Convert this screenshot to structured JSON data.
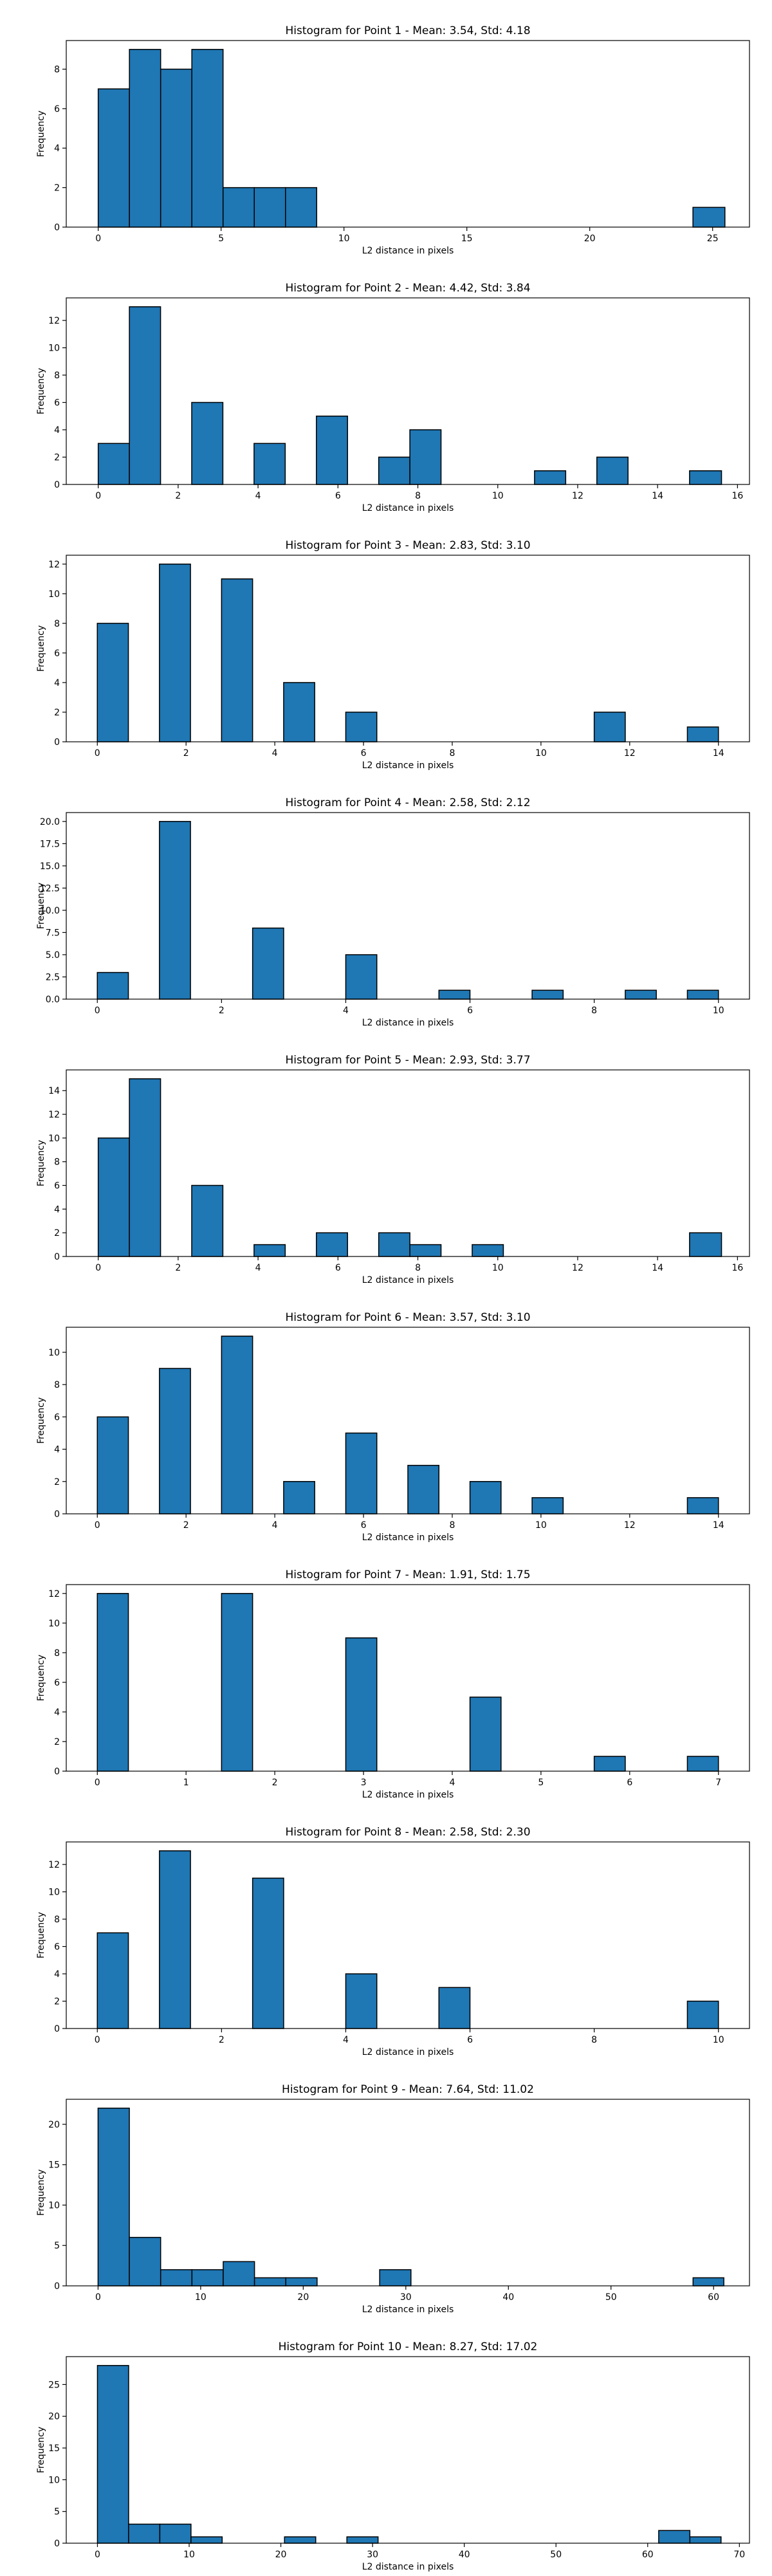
{
  "style": {
    "bar_color": "#1f77b4",
    "edge_color": "#000000"
  },
  "chart_data": [
    {
      "type": "bar",
      "title": "Histogram for Point 1 - Mean: 3.54, Std: 4.18",
      "xlabel": "L2 distance in pixels",
      "ylabel": "Frequency",
      "xlim": [
        -1.3,
        26.5
      ],
      "ylim": [
        0,
        9.45
      ],
      "xticks": [
        "0",
        "5",
        "10",
        "15",
        "20",
        "25"
      ],
      "yticks": [
        "0",
        "2",
        "4",
        "6",
        "8"
      ],
      "bars": [
        {
          "x0": 0,
          "x1": 1.27,
          "count": 7
        },
        {
          "x0": 1.27,
          "x1": 2.54,
          "count": 9
        },
        {
          "x0": 2.54,
          "x1": 3.81,
          "count": 8
        },
        {
          "x0": 3.81,
          "x1": 5.08,
          "count": 9
        },
        {
          "x0": 5.08,
          "x1": 6.35,
          "count": 2
        },
        {
          "x0": 6.35,
          "x1": 7.62,
          "count": 2
        },
        {
          "x0": 7.62,
          "x1": 8.89,
          "count": 2
        },
        {
          "x0": 24.2,
          "x1": 25.5,
          "count": 1
        }
      ]
    },
    {
      "type": "bar",
      "title": "Histogram for Point 2 - Mean: 4.42, Std: 3.84",
      "xlabel": "L2 distance in pixels",
      "ylabel": "Frequency",
      "xlim": [
        -0.8,
        16.3
      ],
      "ylim": [
        0,
        13.65
      ],
      "xticks": [
        "0",
        "2",
        "4",
        "6",
        "8",
        "10",
        "12",
        "14",
        "16"
      ],
      "yticks": [
        "0",
        "2",
        "4",
        "6",
        "8",
        "10",
        "12"
      ],
      "bars": [
        {
          "x0": 0,
          "x1": 0.78,
          "count": 3
        },
        {
          "x0": 0.78,
          "x1": 1.56,
          "count": 13
        },
        {
          "x0": 2.34,
          "x1": 3.12,
          "count": 6
        },
        {
          "x0": 3.9,
          "x1": 4.68,
          "count": 3
        },
        {
          "x0": 5.46,
          "x1": 6.24,
          "count": 5
        },
        {
          "x0": 7.02,
          "x1": 7.8,
          "count": 2
        },
        {
          "x0": 7.8,
          "x1": 8.58,
          "count": 4
        },
        {
          "x0": 10.92,
          "x1": 11.7,
          "count": 1
        },
        {
          "x0": 12.48,
          "x1": 13.26,
          "count": 2
        },
        {
          "x0": 14.8,
          "x1": 15.6,
          "count": 1
        }
      ]
    },
    {
      "type": "bar",
      "title": "Histogram for Point 3 - Mean: 2.83, Std: 3.10",
      "xlabel": "L2 distance in pixels",
      "ylabel": "Frequency",
      "xlim": [
        -0.7,
        14.7
      ],
      "ylim": [
        0,
        12.6
      ],
      "xticks": [
        "0",
        "2",
        "4",
        "6",
        "8",
        "10",
        "12",
        "14"
      ],
      "yticks": [
        "0",
        "2",
        "4",
        "6",
        "8",
        "10",
        "12"
      ],
      "bars": [
        {
          "x0": 0,
          "x1": 0.7,
          "count": 8
        },
        {
          "x0": 1.4,
          "x1": 2.1,
          "count": 12
        },
        {
          "x0": 2.8,
          "x1": 3.5,
          "count": 11
        },
        {
          "x0": 4.2,
          "x1": 4.9,
          "count": 4
        },
        {
          "x0": 5.6,
          "x1": 6.3,
          "count": 2
        },
        {
          "x0": 11.2,
          "x1": 11.9,
          "count": 2
        },
        {
          "x0": 13.3,
          "x1": 14.0,
          "count": 1
        }
      ]
    },
    {
      "type": "bar",
      "title": "Histogram for Point 4 - Mean: 2.58, Std: 2.12",
      "xlabel": "L2 distance in pixels",
      "ylabel": "Frequency",
      "xlim": [
        -0.5,
        10.5
      ],
      "ylim": [
        0,
        21
      ],
      "xticks": [
        "0",
        "2",
        "4",
        "6",
        "8",
        "10"
      ],
      "yticks": [
        "0.0",
        "2.5",
        "5.0",
        "7.5",
        "10.0",
        "12.5",
        "15.0",
        "17.5",
        "20.0"
      ],
      "yticks_values": [
        0,
        2.5,
        5,
        7.5,
        10,
        12.5,
        15,
        17.5,
        20
      ],
      "bars": [
        {
          "x0": 0,
          "x1": 0.5,
          "count": 3
        },
        {
          "x0": 1.0,
          "x1": 1.5,
          "count": 20
        },
        {
          "x0": 2.5,
          "x1": 3.0,
          "count": 8
        },
        {
          "x0": 4.0,
          "x1": 4.5,
          "count": 5
        },
        {
          "x0": 5.5,
          "x1": 6.0,
          "count": 1
        },
        {
          "x0": 7.0,
          "x1": 7.5,
          "count": 1
        },
        {
          "x0": 8.5,
          "x1": 9.0,
          "count": 1
        },
        {
          "x0": 9.5,
          "x1": 10.0,
          "count": 1
        }
      ]
    },
    {
      "type": "bar",
      "title": "Histogram for Point 5 - Mean: 2.93, Std: 3.77",
      "xlabel": "L2 distance in pixels",
      "ylabel": "Frequency",
      "xlim": [
        -0.8,
        16.3
      ],
      "ylim": [
        0,
        15.75
      ],
      "xticks": [
        "0",
        "2",
        "4",
        "6",
        "8",
        "10",
        "12",
        "14",
        "16"
      ],
      "yticks": [
        "0",
        "2",
        "4",
        "6",
        "8",
        "10",
        "12",
        "14"
      ],
      "bars": [
        {
          "x0": 0,
          "x1": 0.78,
          "count": 10
        },
        {
          "x0": 0.78,
          "x1": 1.56,
          "count": 15
        },
        {
          "x0": 2.34,
          "x1": 3.12,
          "count": 6
        },
        {
          "x0": 3.9,
          "x1": 4.68,
          "count": 1
        },
        {
          "x0": 5.46,
          "x1": 6.24,
          "count": 2
        },
        {
          "x0": 7.02,
          "x1": 7.8,
          "count": 2
        },
        {
          "x0": 7.8,
          "x1": 8.58,
          "count": 1
        },
        {
          "x0": 9.36,
          "x1": 10.14,
          "count": 1
        },
        {
          "x0": 14.8,
          "x1": 15.6,
          "count": 2
        }
      ]
    },
    {
      "type": "bar",
      "title": "Histogram for Point 6 - Mean: 3.57, Std: 3.10",
      "xlabel": "L2 distance in pixels",
      "ylabel": "Frequency",
      "xlim": [
        -0.7,
        14.7
      ],
      "ylim": [
        0,
        11.55
      ],
      "xticks": [
        "0",
        "2",
        "4",
        "6",
        "8",
        "10",
        "12",
        "14"
      ],
      "yticks": [
        "0",
        "2",
        "4",
        "6",
        "8",
        "10"
      ],
      "bars": [
        {
          "x0": 0,
          "x1": 0.7,
          "count": 6
        },
        {
          "x0": 1.4,
          "x1": 2.1,
          "count": 9
        },
        {
          "x0": 2.8,
          "x1": 3.5,
          "count": 11
        },
        {
          "x0": 4.2,
          "x1": 4.9,
          "count": 2
        },
        {
          "x0": 5.6,
          "x1": 6.3,
          "count": 5
        },
        {
          "x0": 7.0,
          "x1": 7.7,
          "count": 3
        },
        {
          "x0": 8.4,
          "x1": 9.1,
          "count": 2
        },
        {
          "x0": 9.8,
          "x1": 10.5,
          "count": 1
        },
        {
          "x0": 13.3,
          "x1": 14.0,
          "count": 1
        }
      ]
    },
    {
      "type": "bar",
      "title": "Histogram for Point 7 - Mean: 1.91, Std: 1.75",
      "xlabel": "L2 distance in pixels",
      "ylabel": "Frequency",
      "xlim": [
        -0.35,
        7.35
      ],
      "ylim": [
        0,
        12.6
      ],
      "xticks": [
        "0",
        "1",
        "2",
        "3",
        "4",
        "5",
        "6",
        "7"
      ],
      "yticks": [
        "0",
        "2",
        "4",
        "6",
        "8",
        "10",
        "12"
      ],
      "bars": [
        {
          "x0": 0,
          "x1": 0.35,
          "count": 12
        },
        {
          "x0": 1.4,
          "x1": 1.75,
          "count": 12
        },
        {
          "x0": 2.8,
          "x1": 3.15,
          "count": 9
        },
        {
          "x0": 4.2,
          "x1": 4.55,
          "count": 5
        },
        {
          "x0": 5.6,
          "x1": 5.95,
          "count": 1
        },
        {
          "x0": 6.65,
          "x1": 7.0,
          "count": 1
        }
      ]
    },
    {
      "type": "bar",
      "title": "Histogram for Point 8 - Mean: 2.58, Std: 2.30",
      "xlabel": "L2 distance in pixels",
      "ylabel": "Frequency",
      "xlim": [
        -0.5,
        10.5
      ],
      "ylim": [
        0,
        13.65
      ],
      "xticks": [
        "0",
        "2",
        "4",
        "6",
        "8",
        "10"
      ],
      "yticks": [
        "0",
        "2",
        "4",
        "6",
        "8",
        "10",
        "12"
      ],
      "bars": [
        {
          "x0": 0,
          "x1": 0.5,
          "count": 7
        },
        {
          "x0": 1.0,
          "x1": 1.5,
          "count": 13
        },
        {
          "x0": 2.5,
          "x1": 3.0,
          "count": 11
        },
        {
          "x0": 4.0,
          "x1": 4.5,
          "count": 4
        },
        {
          "x0": 5.5,
          "x1": 6.0,
          "count": 3
        },
        {
          "x0": 9.5,
          "x1": 10.0,
          "count": 2
        }
      ]
    },
    {
      "type": "bar",
      "title": "Histogram for Point 9 - Mean: 7.64, Std: 11.02",
      "xlabel": "L2 distance in pixels",
      "ylabel": "Frequency",
      "xlim": [
        -3.1,
        63.5
      ],
      "ylim": [
        0,
        23.1
      ],
      "xticks": [
        "0",
        "10",
        "20",
        "30",
        "40",
        "50",
        "60"
      ],
      "yticks": [
        "0",
        "5",
        "10",
        "15",
        "20"
      ],
      "bars": [
        {
          "x0": 0,
          "x1": 3.05,
          "count": 22
        },
        {
          "x0": 3.05,
          "x1": 6.1,
          "count": 6
        },
        {
          "x0": 6.1,
          "x1": 9.15,
          "count": 2
        },
        {
          "x0": 9.15,
          "x1": 12.2,
          "count": 2
        },
        {
          "x0": 12.2,
          "x1": 15.25,
          "count": 3
        },
        {
          "x0": 15.25,
          "x1": 18.3,
          "count": 1
        },
        {
          "x0": 18.3,
          "x1": 21.35,
          "count": 1
        },
        {
          "x0": 27.45,
          "x1": 30.5,
          "count": 2
        },
        {
          "x0": 58.0,
          "x1": 61.0,
          "count": 1
        }
      ]
    },
    {
      "type": "bar",
      "title": "Histogram for Point 10 - Mean: 8.27, Std: 17.02",
      "xlabel": "L2 distance in pixels",
      "ylabel": "Frequency",
      "xlim": [
        -3.4,
        71.1
      ],
      "ylim": [
        0,
        29.4
      ],
      "xticks": [
        "0",
        "10",
        "20",
        "30",
        "40",
        "50",
        "60",
        "70"
      ],
      "yticks": [
        "0",
        "5",
        "10",
        "15",
        "20",
        "25"
      ],
      "bars": [
        {
          "x0": 0,
          "x1": 3.4,
          "count": 28
        },
        {
          "x0": 3.4,
          "x1": 6.8,
          "count": 3
        },
        {
          "x0": 6.8,
          "x1": 10.2,
          "count": 3
        },
        {
          "x0": 10.2,
          "x1": 13.6,
          "count": 1
        },
        {
          "x0": 20.4,
          "x1": 23.8,
          "count": 1
        },
        {
          "x0": 27.2,
          "x1": 30.6,
          "count": 1
        },
        {
          "x0": 61.2,
          "x1": 64.6,
          "count": 2
        },
        {
          "x0": 64.6,
          "x1": 68.0,
          "count": 1
        }
      ]
    }
  ]
}
